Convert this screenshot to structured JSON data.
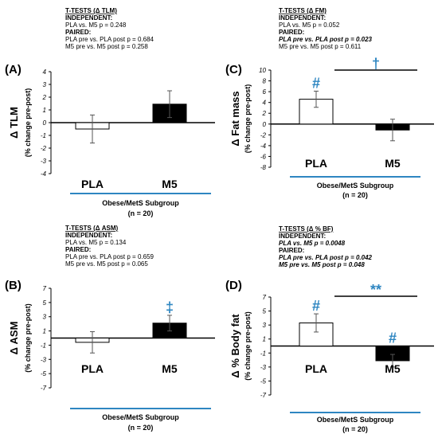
{
  "chart_data": [
    {
      "panel": "(A)",
      "type": "bar",
      "categories": [
        "PLA",
        "M5"
      ],
      "values": [
        -0.5,
        1.45
      ],
      "errors": [
        1.1,
        1.05
      ],
      "bar_fill": [
        "#ffffff",
        "#000000"
      ],
      "ylabel": "Δ TLM",
      "ysublabel": "(% change pre-post)",
      "ylim": [
        -4,
        4
      ],
      "yticks": [
        "4",
        "3",
        "2",
        "1",
        "0",
        "-1",
        "-2",
        "-3",
        "-4"
      ],
      "xlabel": "Obese/MetS Subgroup",
      "xsublabel": "(n = 20)",
      "markers": [],
      "bracket": null,
      "stats": {
        "title": "T-TESTS (Δ TLM)",
        "independent_label": "INDEPENDENT:",
        "independent_lines": [
          {
            "text": "PLA vs. M5  p  = 0.248",
            "significant": false
          }
        ],
        "paired_label": "PAIRED:",
        "paired_lines": [
          {
            "text": "PLA pre vs. PLA post p  = 0.684",
            "significant": false
          },
          {
            "text": "M5 pre vs. M5 post p  =  0.258",
            "significant": false
          }
        ]
      }
    },
    {
      "panel": "(C)",
      "type": "bar",
      "categories": [
        "PLA",
        "M5"
      ],
      "values": [
        4.6,
        -1.1
      ],
      "errors": [
        1.5,
        2.0
      ],
      "bar_fill": [
        "#ffffff",
        "#000000"
      ],
      "ylabel": "Δ Fat mass",
      "ysublabel": "(% change pre-post)",
      "ylim": [
        -8,
        10
      ],
      "yticks": [
        "10",
        "8",
        "6",
        "4",
        "2",
        "0",
        "-2",
        "-4",
        "-6",
        "-8"
      ],
      "xlabel": "Obese/MetS Subgroup",
      "xsublabel": "(n = 20)",
      "markers": [
        "#",
        ""
      ],
      "bracket": "†",
      "stats": {
        "title": "T-TESTS (Δ FM)",
        "independent_label": "INDEPENDENT:",
        "independent_lines": [
          {
            "text": "PLA vs. M5  p  = 0.052",
            "significant": false
          }
        ],
        "paired_label": "PAIRED:",
        "paired_lines": [
          {
            "text": "PLA pre vs. PLA post p = 0.023",
            "significant": true
          },
          {
            "text": "M5 pre vs. M5 post p  =  0.611",
            "significant": false
          }
        ]
      }
    },
    {
      "panel": "(B)",
      "type": "bar",
      "categories": [
        "PLA",
        "M5"
      ],
      "values": [
        -0.6,
        2.1
      ],
      "errors": [
        1.5,
        1.1
      ],
      "bar_fill": [
        "#ffffff",
        "#000000"
      ],
      "ylabel": "Δ ASM",
      "ysublabel": "(% change pre-post)",
      "ylim": [
        -7,
        7
      ],
      "yticks": [
        "7",
        "5",
        "3",
        "1",
        "-1",
        "-3",
        "-5",
        "-7"
      ],
      "xlabel": "Obese/MetS Subgroup",
      "xsublabel": "(n = 20)",
      "markers": [
        "",
        "‡"
      ],
      "bracket": null,
      "stats": {
        "title": "T-TESTS (Δ ASM)",
        "independent_label": "INDEPENDENT:",
        "independent_lines": [
          {
            "text": "PLA vs. M5  p  = 0.134",
            "significant": false
          }
        ],
        "paired_label": "PAIRED:",
        "paired_lines": [
          {
            "text": "PLA pre vs. PLA post p  = 0.659",
            "significant": false
          },
          {
            "text": "M5 pre vs. M5 post p  =  0.065",
            "significant": false
          }
        ]
      }
    },
    {
      "panel": "(D)",
      "type": "bar",
      "categories": [
        "PLA",
        "M5"
      ],
      "values": [
        3.3,
        -2.1
      ],
      "errors": [
        1.3,
        0.9
      ],
      "bar_fill": [
        "#ffffff",
        "#000000"
      ],
      "ylabel": "Δ % Body fat",
      "ysublabel": "(% change pre-post)",
      "ylim": [
        -7,
        7
      ],
      "yticks": [
        "7",
        "5",
        "3",
        "1",
        "-1",
        "-3",
        "-5",
        "-7"
      ],
      "xlabel": "Obese/MetS Subgroup",
      "xsublabel": "(n = 20)",
      "markers": [
        "#",
        "#"
      ],
      "bracket": "**",
      "stats": {
        "title": "T-TESTS (Δ % BF)",
        "independent_label": "INDEPENDENT:",
        "independent_lines": [
          {
            "text": "PLA vs. M5  p = 0.0048",
            "significant": true
          }
        ],
        "paired_label": "PAIRED:",
        "paired_lines": [
          {
            "text": "PLA pre vs. PLA post p = 0.042",
            "significant": true
          },
          {
            "text": "M5 pre vs. M5 post p  = 0.048",
            "significant": true
          }
        ]
      }
    }
  ],
  "colors": {
    "accent_blue": "#2e86c1",
    "axis": "#000000"
  }
}
